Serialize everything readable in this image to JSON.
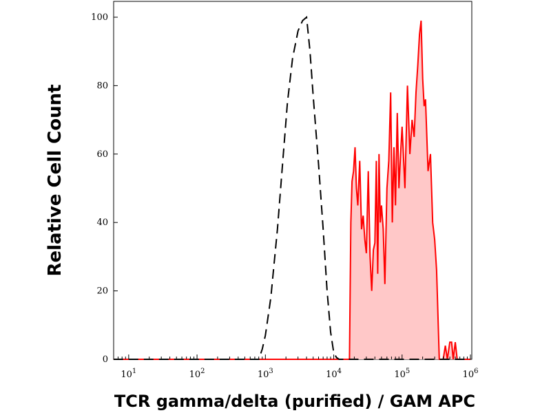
{
  "chart_data": {
    "type": "area",
    "title": "",
    "xlabel": "TCR gamma/delta (purified) / GAM APC",
    "ylabel": "Relative Cell Count",
    "x_scale": "log",
    "xlim": [
      10,
      1000000
    ],
    "ylim": [
      0,
      100
    ],
    "x_tick_labels": [
      {
        "base": "10",
        "exp": "1",
        "value": 10
      },
      {
        "base": "10",
        "exp": "2",
        "value": 100
      },
      {
        "base": "10",
        "exp": "3",
        "value": 1000
      },
      {
        "base": "10",
        "exp": "4",
        "value": 10000
      },
      {
        "base": "10",
        "exp": "5",
        "value": 100000
      },
      {
        "base": "10",
        "exp": "6",
        "value": 1000000
      }
    ],
    "y_tick_labels": [
      "0",
      "20",
      "40",
      "60",
      "80",
      "100"
    ],
    "y_ticks": [
      0,
      20,
      40,
      60,
      80,
      100
    ],
    "grid": false,
    "legend": "none",
    "colors": {
      "unstained": "#000000",
      "stained_line": "#ff0000",
      "stained_fill": "#ffc8c8"
    },
    "series": [
      {
        "style": "dashed",
        "x": [
          6,
          800,
          900,
          1000,
          1200,
          1500,
          1800,
          2100,
          2500,
          3000,
          3500,
          4000,
          4500,
          5000,
          6000,
          7000,
          8000,
          9000,
          10000,
          11000,
          12000,
          13000,
          14000,
          15000,
          16000,
          18000,
          20000,
          30000,
          50000,
          80000,
          100000,
          200000,
          400000,
          1000000
        ],
        "y": [
          0,
          0,
          3,
          7,
          18,
          38,
          58,
          75,
          88,
          96,
          99,
          100,
          90,
          77,
          57,
          38,
          20,
          8,
          2,
          0.5,
          0,
          0,
          0,
          0,
          0,
          0,
          0,
          0,
          0,
          0,
          0,
          0,
          0,
          0
        ]
      },
      {
        "style": "solid-filled",
        "x": [
          6,
          17000,
          17800,
          18500,
          19500,
          20500,
          21500,
          22500,
          24000,
          25500,
          27000,
          28500,
          30000,
          32000,
          34000,
          36000,
          38000,
          40000,
          42000,
          44000,
          46000,
          48000,
          50000,
          53000,
          56000,
          60000,
          64000,
          68000,
          72000,
          76000,
          80000,
          85000,
          90000,
          95000,
          100000,
          110000,
          120000,
          130000,
          140000,
          150000,
          160000,
          170000,
          180000,
          190000,
          200000,
          210000,
          220000,
          240000,
          260000,
          280000,
          300000,
          320000,
          350000,
          380000,
          400000,
          430000,
          460000,
          500000,
          530000,
          560000,
          600000,
          640000,
          1000000
        ],
        "y": [
          0,
          0,
          40,
          52,
          55,
          62,
          50,
          45,
          58,
          38,
          42,
          35,
          31,
          55,
          30,
          20,
          32,
          34,
          58,
          25,
          60,
          40,
          45,
          38,
          22,
          50,
          58,
          78,
          40,
          62,
          45,
          72,
          50,
          60,
          68,
          50,
          80,
          60,
          70,
          65,
          78,
          86,
          95,
          99,
          82,
          74,
          76,
          55,
          60,
          40,
          35,
          26,
          0,
          0,
          0,
          4,
          0,
          5,
          5,
          0,
          5,
          0,
          0
        ]
      }
    ]
  }
}
